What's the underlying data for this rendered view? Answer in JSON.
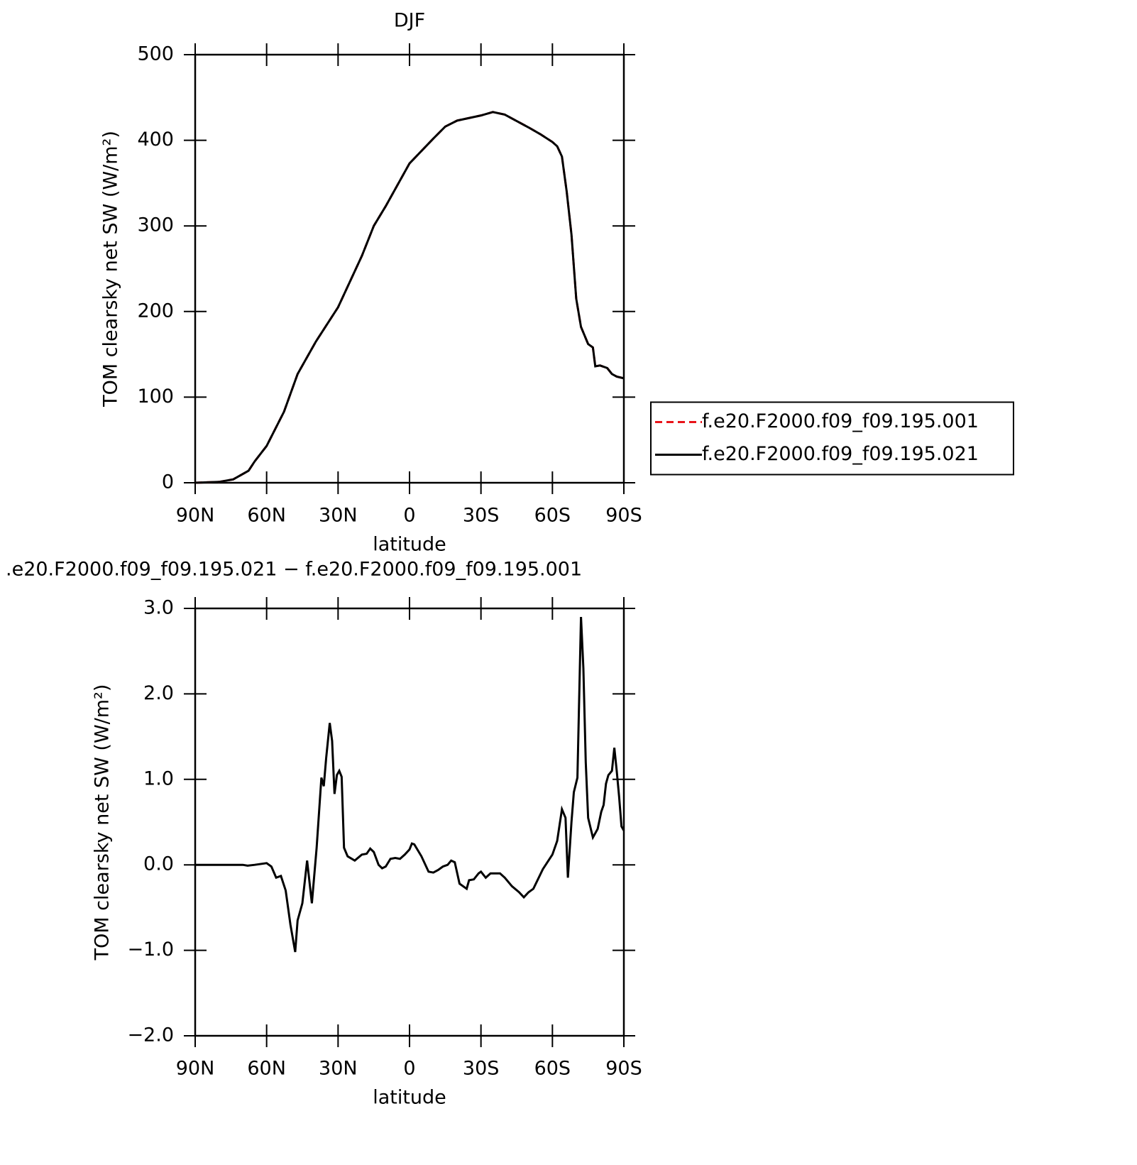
{
  "chart_data": [
    {
      "type": "line",
      "title": "DJF",
      "x_label": "latitude",
      "y_label": "TOM clearsky net SW (W/m²)",
      "x": [
        90,
        80,
        74,
        67.6,
        65,
        60,
        52.7,
        47,
        39.3,
        30,
        20,
        15,
        10,
        0,
        -10,
        -15,
        -20,
        -30,
        -35,
        -40,
        -50,
        -55,
        -60,
        -62,
        -64,
        -66,
        -68,
        -70,
        -72,
        -75,
        -77,
        -78,
        -80,
        -83,
        -85,
        -87,
        -90
      ],
      "series": [
        {
          "name": "f.e20.F2000.f09_f09.195.001",
          "color": "#e8141a",
          "line_style": "dashed",
          "values": [
            0,
            1,
            4,
            14,
            25,
            43,
            83,
            127,
            165,
            205,
            265,
            300,
            323,
            373,
            402,
            416,
            423,
            429,
            433,
            430,
            415,
            407,
            398,
            393,
            381,
            340,
            290,
            215,
            182,
            162,
            158,
            136,
            137,
            134,
            127,
            124,
            122
          ]
        },
        {
          "name": "f.e20.F2000.f09_f09.195.021",
          "color": "#000000",
          "line_style": "solid",
          "values": [
            0,
            1,
            4,
            14,
            25,
            43,
            83,
            127,
            165,
            205,
            265,
            300,
            323,
            373,
            402,
            416,
            423,
            429,
            433,
            430,
            415,
            407,
            398,
            393,
            381,
            340,
            290,
            215,
            182,
            162,
            158,
            136,
            137,
            134,
            127,
            124,
            122
          ]
        }
      ],
      "xlim": [
        90,
        -90
      ],
      "xticks": [
        {
          "value": 90,
          "label": "90N"
        },
        {
          "value": 60,
          "label": "60N"
        },
        {
          "value": 30,
          "label": "30N"
        },
        0,
        {
          "value": -30,
          "label": "30S"
        },
        {
          "value": -60,
          "label": "60S"
        },
        {
          "value": -90,
          "label": "90S"
        }
      ],
      "ylim": [
        0,
        500
      ],
      "yticks": [
        0,
        100,
        200,
        300,
        400,
        500
      ],
      "legend": "right"
    },
    {
      "type": "line",
      "title": ".e20.F2000.f09_f09.195.021 − f.e20.F2000.f09_f09.195.001",
      "x_label": "latitude",
      "y_label": "TOM clearsky net SW (W/m²)",
      "x": [
        90,
        70,
        68,
        65,
        60,
        58,
        56,
        54,
        52,
        50,
        48,
        47,
        45,
        43,
        41,
        39,
        37,
        36,
        35,
        33.5,
        32.5,
        31.5,
        30.5,
        29.5,
        28.5,
        27.5,
        26,
        23,
        20,
        18,
        16.5,
        15,
        13,
        11.5,
        10,
        8,
        6,
        4,
        2,
        0,
        -1,
        -2,
        -5,
        -8,
        -10,
        -12,
        -14,
        -16,
        -17.5,
        -19,
        -21,
        -24,
        -25,
        -27,
        -29,
        -30,
        -32,
        -34,
        -36,
        -38,
        -40,
        -43,
        -46,
        -48,
        -50,
        -52,
        -56,
        -60,
        -62,
        -64,
        -65.5,
        -66.5,
        -68,
        -69,
        -70.5,
        -72,
        -73,
        -74,
        -75,
        -77,
        -79,
        -80.5,
        -81.5,
        -82.5,
        -83.5,
        -85,
        -86,
        -87,
        -88,
        -89,
        -90
      ],
      "series": [
        {
          "color": "#000000",
          "line_style": "solid",
          "values": [
            0,
            0,
            -0.01,
            0,
            0.02,
            -0.02,
            -0.15,
            -0.13,
            -0.3,
            -0.7,
            -1.02,
            -0.65,
            -0.45,
            0.05,
            -0.45,
            0.2,
            1.02,
            0.92,
            1.25,
            1.66,
            1.45,
            0.83,
            1.05,
            1.1,
            1.03,
            0.2,
            0.1,
            0.05,
            0.12,
            0.13,
            0.19,
            0.15,
            0,
            -0.04,
            -0.02,
            0.07,
            0.08,
            0.07,
            0.12,
            0.18,
            0.25,
            0.24,
            0.1,
            -0.08,
            -0.09,
            -0.06,
            -0.02,
            0,
            0.05,
            0.03,
            -0.22,
            -0.28,
            -0.18,
            -0.17,
            -0.1,
            -0.08,
            -0.15,
            -0.1,
            -0.1,
            -0.1,
            -0.15,
            -0.25,
            -0.32,
            -0.38,
            -0.32,
            -0.28,
            -0.05,
            0.12,
            0.28,
            0.65,
            0.55,
            -0.15,
            0.5,
            0.85,
            1.02,
            2.9,
            2.3,
            1.2,
            0.55,
            0.32,
            0.42,
            0.62,
            0.7,
            0.95,
            1.05,
            1.1,
            1.37,
            1.1,
            0.8,
            0.45,
            0.4
          ]
        }
      ],
      "xlim": [
        90,
        -90
      ],
      "xticks": [
        {
          "value": 90,
          "label": "90N"
        },
        {
          "value": 60,
          "label": "60N"
        },
        {
          "value": 30,
          "label": "30N"
        },
        0,
        {
          "value": -30,
          "label": "30S"
        },
        {
          "value": -60,
          "label": "60S"
        },
        {
          "value": -90,
          "label": "90S"
        }
      ],
      "ylim": [
        -2,
        3
      ],
      "yticks": [
        {
          "value": -2,
          "label": "−2.0"
        },
        {
          "value": -1,
          "label": "−1.0"
        },
        {
          "value": 0,
          "label": "0.0"
        },
        {
          "value": 1,
          "label": "1.0"
        },
        {
          "value": 2,
          "label": "2.0"
        },
        {
          "value": 3,
          "label": "3.0"
        }
      ]
    }
  ]
}
